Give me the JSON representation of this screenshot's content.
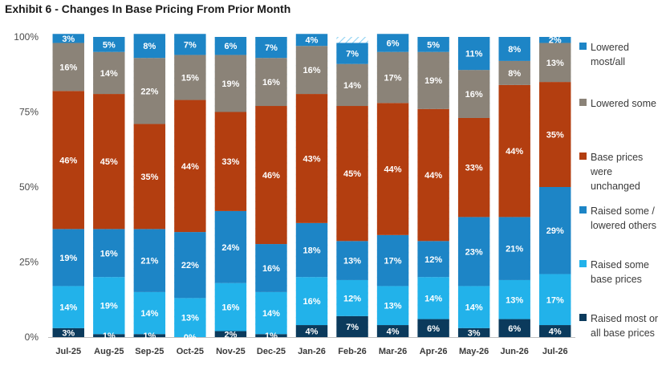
{
  "chart_data": {
    "type": "bar",
    "stacked": true,
    "title": "Exhibit 6 - Changes In Base Pricing From Prior Month",
    "categories": [
      "Jul-25",
      "Aug-25",
      "Sep-25",
      "Oct-25",
      "Nov-25",
      "Dec-25",
      "Jan-26",
      "Feb-26",
      "Mar-26",
      "Apr-26",
      "May-26",
      "Jun-26",
      "Jul-26"
    ],
    "ylim": [
      0,
      100
    ],
    "yticks": [
      "0%",
      "25%",
      "50%",
      "75%",
      "100%"
    ],
    "grid": false,
    "legend_position": "right",
    "series": [
      {
        "name": "Raised most or all base prices",
        "color": "#0b3a5c",
        "values": [
          3,
          1,
          1,
          0,
          2,
          1,
          4,
          7,
          4,
          6,
          3,
          6,
          4
        ],
        "labels": [
          "3%",
          "1%",
          "1%",
          "0%",
          "2%",
          "1%",
          "4%",
          "7%",
          "4%",
          "6%",
          "3%",
          "6%",
          "4%"
        ]
      },
      {
        "name": "Raised some base prices",
        "color": "#22b2ea",
        "values": [
          14,
          19,
          14,
          13,
          16,
          14,
          16,
          12,
          13,
          14,
          14,
          13,
          17
        ],
        "labels": [
          "14%",
          "19%",
          "14%",
          "13%",
          "16%",
          "14%",
          "16%",
          "12%",
          "13%",
          "14%",
          "14%",
          "13%",
          "17%"
        ]
      },
      {
        "name": "Raised some / lowered others",
        "color": "#1d85c6",
        "values": [
          19,
          16,
          21,
          22,
          24,
          16,
          18,
          13,
          17,
          12,
          23,
          21,
          29
        ],
        "labels": [
          "19%",
          "16%",
          "21%",
          "22%",
          "24%",
          "16%",
          "18%",
          "13%",
          "17%",
          "12%",
          "23%",
          "21%",
          "29%"
        ]
      },
      {
        "name": "Base prices were unchanged",
        "color": "#b33e10",
        "values": [
          46,
          45,
          35,
          44,
          33,
          46,
          43,
          45,
          44,
          44,
          33,
          44,
          35
        ],
        "labels": [
          "46%",
          "45%",
          "35%",
          "44%",
          "33%",
          "46%",
          "43%",
          "45%",
          "44%",
          "44%",
          "33%",
          "44%",
          "35%"
        ]
      },
      {
        "name": "Lowered some",
        "color": "#8b8378",
        "values": [
          16,
          14,
          22,
          15,
          19,
          16,
          16,
          14,
          17,
          19,
          16,
          8,
          13
        ],
        "labels": [
          "16%",
          "14%",
          "22%",
          "15%",
          "19%",
          "16%",
          "16%",
          "14%",
          "17%",
          "19%",
          "16%",
          "8%",
          "13%"
        ]
      },
      {
        "name": "Lowered most/all",
        "color": "#1d85c6",
        "values": [
          3,
          5,
          8,
          7,
          6,
          7,
          4,
          7,
          6,
          5,
          11,
          8,
          2
        ],
        "labels": [
          "3%",
          "5%",
          "8%",
          "7%",
          "6%",
          "7%",
          "4%",
          "7%",
          "6%",
          "5%",
          "11%",
          "8%",
          "2%"
        ]
      }
    ]
  },
  "legend": {
    "items": [
      {
        "text": "Lowered most/all",
        "color": "#1d85c6"
      },
      {
        "text": "Lowered some",
        "color": "#8b8378"
      },
      {
        "text": "Base prices were unchanged",
        "color": "#b33e10"
      },
      {
        "text": "Raised some / lowered others",
        "color": "#1d85c6"
      },
      {
        "text": "Raised some base prices",
        "color": "#22b2ea"
      },
      {
        "text": "Raised most or all base prices",
        "color": "#0b3a5c"
      }
    ]
  }
}
